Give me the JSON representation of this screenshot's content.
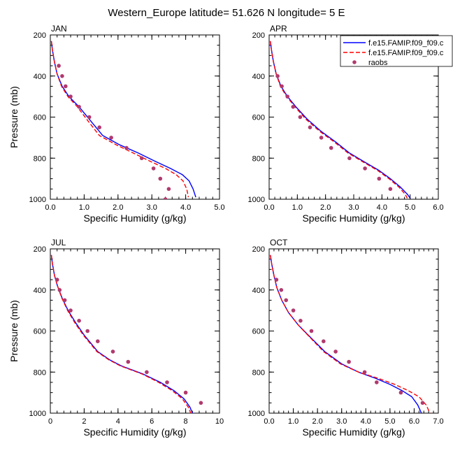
{
  "figure": {
    "title": "Western_Europe  latitude= 51.626 N longitude= 5 E"
  },
  "chart_data": [
    {
      "type": "line",
      "panel_label": "JAN",
      "xlabel": "Specific Humidity (g/kg)",
      "ylabel": "Pressure (mb)",
      "xlim": [
        0,
        5
      ],
      "ylim": [
        1000,
        200
      ],
      "y_reversed": true,
      "xticks": [
        0,
        1,
        2,
        3,
        4,
        5
      ],
      "xtick_labels": [
        "0.0",
        "1.0",
        "2.0",
        "3.0",
        "4.0",
        "5.0"
      ],
      "yticks": [
        200,
        400,
        600,
        800,
        1000
      ],
      "ytick_labels": [
        "200",
        "400",
        "600",
        "800",
        "1000"
      ],
      "legend": null,
      "series": [
        {
          "color": "#0000ff",
          "style": "solid",
          "x": [
            0.03,
            0.06,
            0.12,
            0.2,
            0.35,
            0.55,
            0.85,
            1.2,
            1.55,
            2.05,
            2.6,
            3.1,
            3.55,
            3.9,
            4.1,
            4.22,
            4.3
          ],
          "y": [
            230,
            270,
            330,
            390,
            450,
            500,
            550,
            620,
            690,
            735,
            775,
            815,
            850,
            880,
            910,
            950,
            990
          ]
        },
        {
          "color": "#ff0000",
          "style": "dashed",
          "x": [
            0.03,
            0.06,
            0.12,
            0.2,
            0.33,
            0.52,
            0.8,
            1.12,
            1.45,
            1.95,
            2.45,
            2.95,
            3.4,
            3.72,
            3.92,
            4.03,
            4.08
          ],
          "y": [
            230,
            270,
            330,
            390,
            450,
            500,
            550,
            620,
            690,
            735,
            775,
            815,
            850,
            880,
            910,
            950,
            990
          ]
        }
      ],
      "points": {
        "color": "#b03a6e",
        "x": [
          0.25,
          0.35,
          0.45,
          0.6,
          0.85,
          1.15,
          1.45,
          1.8,
          2.25,
          2.7,
          3.05,
          3.25,
          3.5,
          3.4
        ],
        "y": [
          350,
          400,
          450,
          500,
          550,
          600,
          650,
          700,
          750,
          800,
          850,
          900,
          950,
          1000
        ]
      }
    },
    {
      "type": "line",
      "panel_label": "APR",
      "xlabel": "Specific Humidity (g/kg)",
      "ylabel": "",
      "xlim": [
        0,
        6
      ],
      "ylim": [
        1000,
        200
      ],
      "y_reversed": true,
      "xticks": [
        0,
        1,
        2,
        3,
        4,
        5,
        6
      ],
      "xtick_labels": [
        "0.0",
        "1.0",
        "2.0",
        "3.0",
        "4.0",
        "5.0",
        "6.0"
      ],
      "yticks": [
        200,
        400,
        600,
        800,
        1000
      ],
      "ytick_labels": [
        "200",
        "400",
        "600",
        "800",
        "1000"
      ],
      "legend": {
        "position": "top-right",
        "entries": [
          {
            "label": "f.e15.FAMIP.f09_f09.c",
            "kind": "solid-line",
            "color": "#0000ff"
          },
          {
            "label": "f.e15.FAMIP.f09_f09.c",
            "kind": "dashed-line",
            "color": "#ff0000"
          },
          {
            "label": "raobs",
            "kind": "marker",
            "color": "#b03a6e"
          }
        ]
      },
      "series": [
        {
          "color": "#0000ff",
          "style": "solid",
          "x": [
            0.04,
            0.08,
            0.15,
            0.25,
            0.42,
            0.65,
            0.95,
            1.35,
            1.85,
            2.35,
            2.85,
            3.4,
            3.9,
            4.3,
            4.65,
            4.9,
            5.0
          ],
          "y": [
            230,
            270,
            330,
            390,
            450,
            500,
            550,
            610,
            670,
            720,
            775,
            820,
            860,
            900,
            940,
            975,
            995
          ]
        },
        {
          "color": "#ff0000",
          "style": "dashed",
          "x": [
            0.04,
            0.08,
            0.15,
            0.25,
            0.4,
            0.62,
            0.92,
            1.3,
            1.8,
            2.3,
            2.8,
            3.35,
            3.85,
            4.25,
            4.6,
            4.82,
            4.9
          ],
          "y": [
            230,
            270,
            330,
            390,
            450,
            500,
            550,
            610,
            670,
            720,
            775,
            820,
            860,
            900,
            940,
            975,
            995
          ]
        }
      ],
      "points": {
        "color": "#b03a6e",
        "x": [
          0.3,
          0.45,
          0.65,
          0.85,
          1.1,
          1.45,
          1.85,
          2.2,
          2.85,
          3.4,
          3.9,
          4.3
        ],
        "y": [
          400,
          450,
          500,
          550,
          600,
          650,
          700,
          750,
          800,
          850,
          900,
          950
        ]
      }
    },
    {
      "type": "line",
      "panel_label": "JUL",
      "xlabel": "Specific Humidity (g/kg)",
      "ylabel": "Pressure (mb)",
      "xlim": [
        0,
        10
      ],
      "ylim": [
        1000,
        200
      ],
      "y_reversed": true,
      "xticks": [
        0,
        2,
        4,
        6,
        8,
        10
      ],
      "xtick_labels": [
        "0",
        "2",
        "4",
        "6",
        "8",
        "10"
      ],
      "yticks": [
        200,
        400,
        600,
        800,
        1000
      ],
      "ytick_labels": [
        "200",
        "400",
        "600",
        "800",
        "1000"
      ],
      "legend": null,
      "series": [
        {
          "color": "#0000ff",
          "style": "solid",
          "x": [
            0.06,
            0.12,
            0.25,
            0.42,
            0.7,
            1.05,
            1.5,
            2.0,
            2.8,
            3.5,
            4.2,
            5.5,
            6.5,
            7.3,
            7.9,
            8.25,
            8.4
          ],
          "y": [
            230,
            270,
            330,
            380,
            440,
            500,
            560,
            620,
            700,
            740,
            770,
            810,
            850,
            890,
            930,
            970,
            1000
          ]
        },
        {
          "color": "#ff0000",
          "style": "dashed",
          "x": [
            0.06,
            0.12,
            0.25,
            0.42,
            0.68,
            1.02,
            1.45,
            1.95,
            2.75,
            3.45,
            4.15,
            5.45,
            6.4,
            7.2,
            7.8,
            8.15,
            8.3
          ],
          "y": [
            230,
            270,
            330,
            380,
            440,
            500,
            560,
            620,
            700,
            740,
            770,
            810,
            850,
            890,
            930,
            970,
            1000
          ]
        }
      ],
      "points": {
        "color": "#b03a6e",
        "x": [
          0.4,
          0.55,
          0.85,
          1.2,
          1.7,
          2.2,
          2.8,
          3.7,
          4.6,
          5.7,
          6.9,
          8.0,
          8.9
        ],
        "y": [
          350,
          400,
          450,
          500,
          550,
          600,
          650,
          700,
          750,
          800,
          850,
          900,
          950
        ]
      }
    },
    {
      "type": "line",
      "panel_label": "OCT",
      "xlabel": "Specific Humidity (g/kg)",
      "ylabel": "",
      "xlim": [
        0,
        7
      ],
      "ylim": [
        1000,
        200
      ],
      "y_reversed": true,
      "xticks": [
        0,
        1,
        2,
        3,
        4,
        5,
        6,
        7
      ],
      "xtick_labels": [
        "0.0",
        "1.0",
        "2.0",
        "3.0",
        "4.0",
        "5.0",
        "6.0",
        "7.0"
      ],
      "yticks": [
        200,
        400,
        600,
        800,
        1000
      ],
      "ytick_labels": [
        "200",
        "400",
        "600",
        "800",
        "1000"
      ],
      "legend": null,
      "series": [
        {
          "color": "#0000ff",
          "style": "solid",
          "x": [
            0.05,
            0.1,
            0.2,
            0.32,
            0.52,
            0.8,
            1.2,
            1.7,
            2.3,
            3.0,
            3.7,
            4.4,
            5.0,
            5.5,
            5.9,
            6.15,
            6.3
          ],
          "y": [
            230,
            270,
            330,
            390,
            450,
            510,
            570,
            630,
            700,
            760,
            800,
            830,
            860,
            890,
            920,
            960,
            1000
          ]
        },
        {
          "color": "#ff0000",
          "style": "dashed",
          "x": [
            0.05,
            0.1,
            0.2,
            0.32,
            0.52,
            0.8,
            1.2,
            1.68,
            2.25,
            2.95,
            3.7,
            4.5,
            5.2,
            5.75,
            6.2,
            6.5,
            6.65
          ],
          "y": [
            230,
            270,
            330,
            390,
            450,
            510,
            570,
            630,
            700,
            760,
            800,
            830,
            860,
            890,
            920,
            960,
            1000
          ]
        }
      ],
      "points": {
        "color": "#b03a6e",
        "x": [
          0.3,
          0.5,
          0.7,
          1.0,
          1.3,
          1.75,
          2.25,
          2.75,
          3.3,
          3.95,
          4.45,
          5.45,
          6.35
        ],
        "y": [
          350,
          400,
          450,
          500,
          550,
          600,
          650,
          700,
          750,
          800,
          850,
          900,
          950
        ]
      }
    }
  ]
}
